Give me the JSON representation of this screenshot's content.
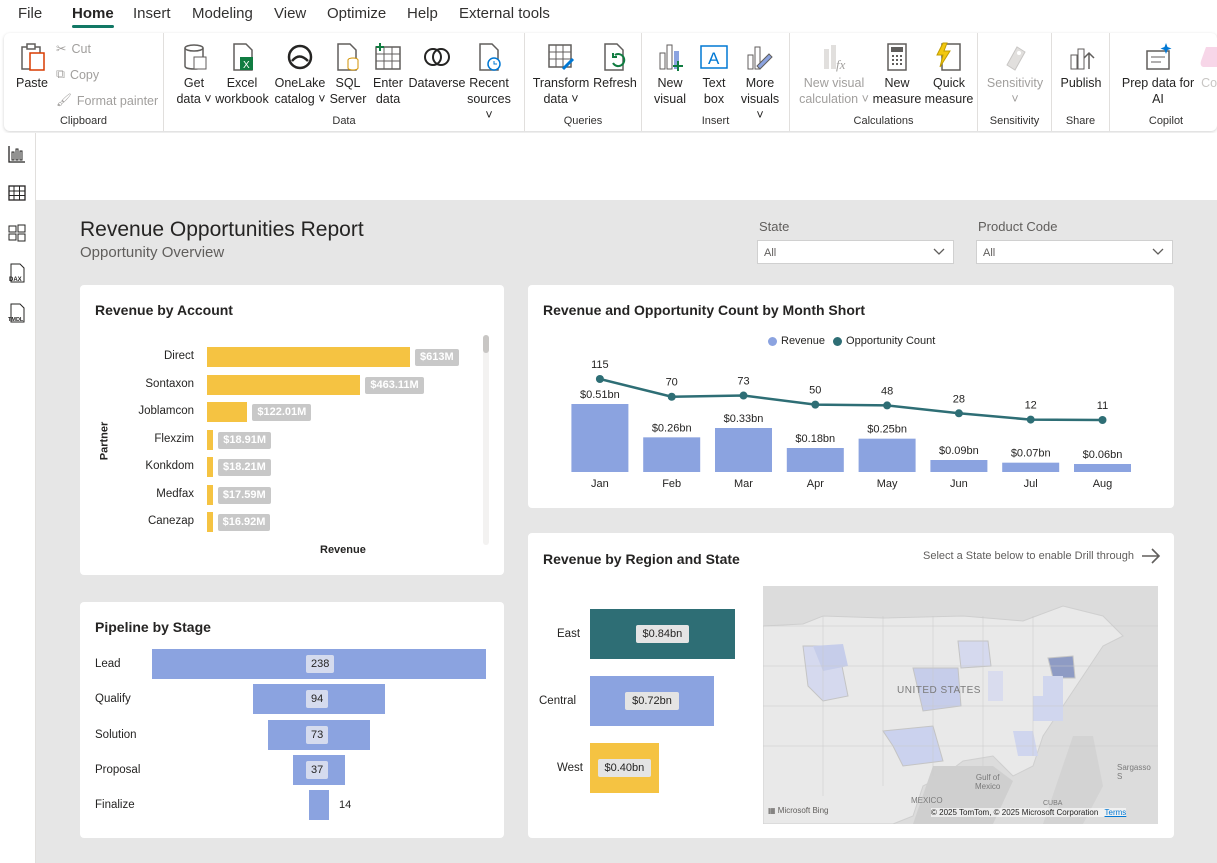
{
  "menu": [
    "File",
    "Home",
    "Insert",
    "Modeling",
    "View",
    "Optimize",
    "Help",
    "External tools"
  ],
  "ribbon": {
    "clipboard": {
      "paste": "Paste",
      "cut": "Cut",
      "copy": "Copy",
      "format_painter": "Format painter",
      "label": "Clipboard"
    },
    "data": {
      "get_data": "Get\ndata",
      "excel": "Excel\nworkbook",
      "onelake": "OneLake\ncatalog",
      "sql": "SQL\nServer",
      "enter": "Enter\ndata",
      "dataverse": "Dataverse",
      "recent": "Recent\nsources",
      "label": "Data"
    },
    "queries": {
      "transform": "Transform\ndata",
      "refresh": "Refresh",
      "label": "Queries"
    },
    "insert": {
      "new_visual": "New\nvisual",
      "text_box": "Text\nbox",
      "more_visuals": "More\nvisuals",
      "label": "Insert"
    },
    "calculations": {
      "new_visual_calc": "New visual\ncalculation",
      "new_measure": "New\nmeasure",
      "quick_measure": "Quick\nmeasure",
      "label": "Calculations"
    },
    "sensitivity": {
      "btn": "Sensitivity",
      "label": "Sensitivity"
    },
    "share": {
      "publish": "Publish",
      "label": "Share"
    },
    "copilot": {
      "prep": "Prep data for\nAI",
      "copilot": "Copi",
      "label": "Copilot"
    }
  },
  "leftnav": [
    "report-view",
    "table-view",
    "model-view",
    "dax-query-view",
    "tmdl-view"
  ],
  "report": {
    "title": "Revenue Opportunities Report",
    "subtitle": "Opportunity Overview"
  },
  "slicers": {
    "state": {
      "label": "State",
      "value": "All"
    },
    "product": {
      "label": "Product Code",
      "value": "All"
    }
  },
  "revenue_by_account": {
    "title": "Revenue by Account",
    "ylabel": "Partner",
    "xlabel": "Revenue",
    "bar_color": "#f5c342",
    "rows": [
      {
        "name": "Direct",
        "value": 613,
        "label": "$613M"
      },
      {
        "name": "Sontaxon",
        "value": 463.11,
        "label": "$463.11M"
      },
      {
        "name": "Joblamcon",
        "value": 122.01,
        "label": "$122.01M"
      },
      {
        "name": "Flexzim",
        "value": 18.91,
        "label": "$18.91M"
      },
      {
        "name": "Konkdom",
        "value": 18.21,
        "label": "$18.21M"
      },
      {
        "name": "Medfax",
        "value": 17.59,
        "label": "$17.59M"
      },
      {
        "name": "Canezap",
        "value": 16.92,
        "label": "$16.92M"
      }
    ]
  },
  "pipeline": {
    "title": "Pipeline by Stage",
    "stages": [
      {
        "name": "Lead",
        "value": 238,
        "label": "238"
      },
      {
        "name": "Qualify",
        "value": 94,
        "label": "94"
      },
      {
        "name": "Solution",
        "value": 73,
        "label": "73"
      },
      {
        "name": "Proposal",
        "value": 37,
        "label": "37"
      },
      {
        "name": "Finalize",
        "value": 14,
        "label": "14"
      }
    ]
  },
  "chart_data": {
    "type": "bar",
    "title": "Revenue and Opportunity Count by Month Short",
    "legend": [
      "Revenue",
      "Opportunity Count"
    ],
    "legend_colors": [
      "#8ba3e0",
      "#2e6e75"
    ],
    "categories": [
      "Jan",
      "Feb",
      "Mar",
      "Apr",
      "May",
      "Jun",
      "Jul",
      "Aug"
    ],
    "series": [
      {
        "name": "Revenue",
        "type": "bar",
        "values": [
          0.51,
          0.26,
          0.33,
          0.18,
          0.25,
          0.09,
          0.07,
          0.06
        ],
        "labels": [
          "$0.51bn",
          "$0.26bn",
          "$0.33bn",
          "$0.18bn",
          "$0.25bn",
          "$0.09bn",
          "$0.07bn",
          "$0.06bn"
        ]
      },
      {
        "name": "Opportunity Count",
        "type": "line",
        "values": [
          115,
          70,
          73,
          50,
          48,
          28,
          12,
          11
        ]
      }
    ]
  },
  "region": {
    "title": "Revenue by Region and State",
    "hint": "Select a State below to enable Drill through",
    "rows": [
      {
        "name": "East",
        "value": 0.84,
        "label": "$0.84bn",
        "color": "#2e6e75"
      },
      {
        "name": "Central",
        "value": 0.72,
        "label": "$0.72bn",
        "color": "#8ba3e0"
      },
      {
        "name": "West",
        "value": 0.4,
        "label": "$0.40bn",
        "color": "#f5c342"
      }
    ],
    "map": {
      "country": "UNITED STATES",
      "gulf": "Gulf of\nMexico",
      "mexico": "MEXICO",
      "cuba": "CUBA",
      "sargasso": "Sargasso S",
      "bing": "Microsoft Bing",
      "copyright": "© 2025 TomTom, © 2025 Microsoft Corporation",
      "terms": "Terms"
    }
  }
}
